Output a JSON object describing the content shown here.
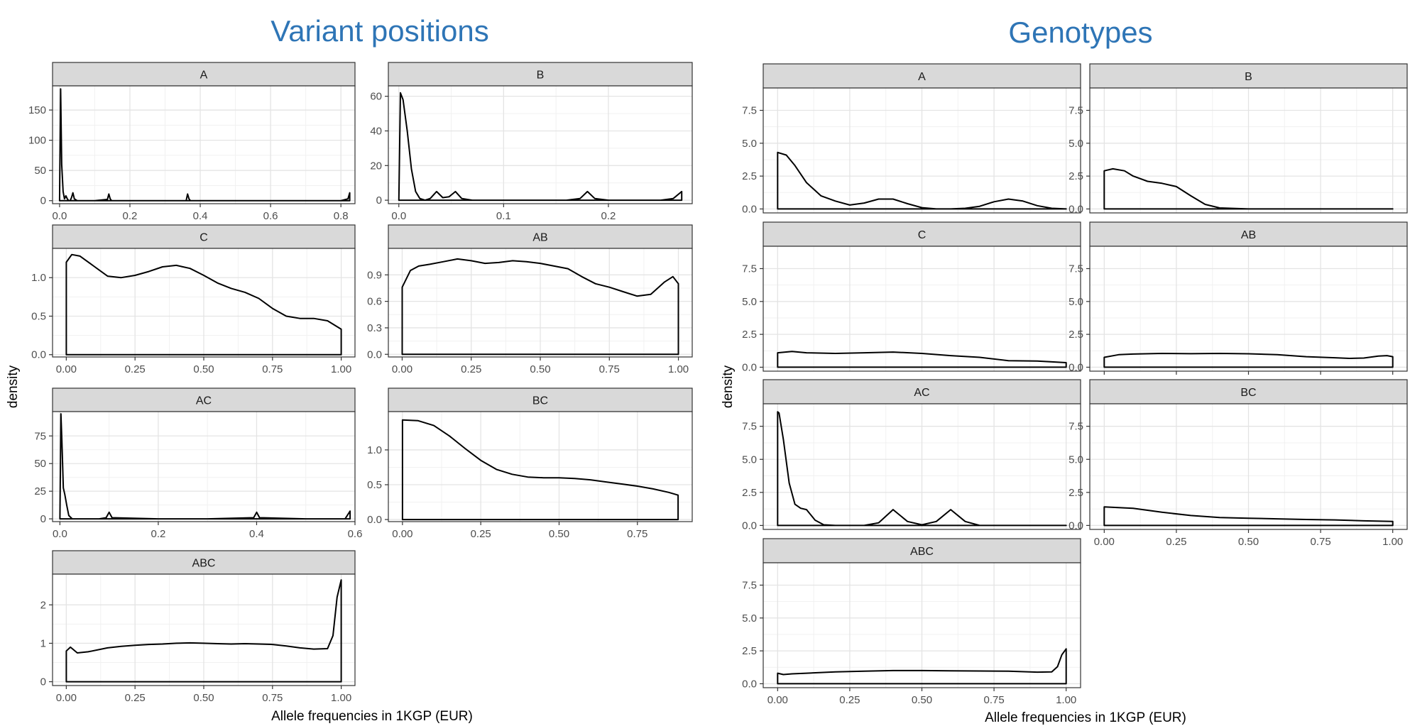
{
  "chart_data": [
    {
      "type": "area",
      "title": "Variant positions",
      "xlabel": "Allele frequencies in 1KGP (EUR)",
      "ylabel": "density",
      "grid": true,
      "facets": [
        {
          "label": "A",
          "xlim": [
            -0.02,
            0.84
          ],
          "ylim": [
            -5,
            190
          ],
          "xticks": [
            0,
            0.2,
            0.4,
            0.6,
            0.8
          ],
          "xtick_labels": [
            "0.0",
            "0.2",
            "0.4",
            "0.6",
            "0.8"
          ],
          "yticks": [
            0,
            50,
            100,
            150
          ],
          "ytick_labels": [
            "0",
            "50",
            "100",
            "150"
          ],
          "x": [
            0,
            0.003,
            0.006,
            0.01,
            0.014,
            0.018,
            0.022,
            0.026,
            0.03,
            0.034,
            0.038,
            0.042,
            0.05,
            0.1,
            0.136,
            0.14,
            0.144,
            0.148,
            0.2,
            0.3,
            0.36,
            0.364,
            0.368,
            0.372,
            0.5,
            0.6,
            0.7,
            0.8,
            0.82,
            0.825
          ],
          "y": [
            0,
            185,
            60,
            15,
            3,
            8,
            3,
            0,
            0,
            5,
            13,
            3,
            0,
            0,
            2,
            11,
            3,
            0,
            0,
            0,
            0,
            11,
            3,
            0,
            0,
            0,
            0,
            0,
            3,
            13
          ]
        },
        {
          "label": "B",
          "xlim": [
            -0.01,
            0.28
          ],
          "ylim": [
            -2,
            66
          ],
          "xticks": [
            0,
            0.1,
            0.2
          ],
          "xtick_labels": [
            "0.0",
            "0.1",
            "0.2"
          ],
          "yticks": [
            0,
            20,
            40,
            60
          ],
          "ytick_labels": [
            "0",
            "20",
            "40",
            "60"
          ],
          "x": [
            0,
            0.0015,
            0.004,
            0.008,
            0.012,
            0.016,
            0.02,
            0.025,
            0.03,
            0.036,
            0.042,
            0.048,
            0.054,
            0.06,
            0.07,
            0.1,
            0.16,
            0.173,
            0.18,
            0.187,
            0.2,
            0.25,
            0.262,
            0.27
          ],
          "y": [
            0,
            62,
            58,
            40,
            18,
            5,
            1,
            0,
            1,
            5,
            1.5,
            2,
            5,
            1,
            0,
            0,
            0,
            1,
            5,
            1,
            0,
            0,
            1,
            5
          ]
        },
        {
          "label": "C",
          "xlim": [
            -0.05,
            1.05
          ],
          "ylim": [
            -0.03,
            1.38
          ],
          "xticks": [
            0,
            0.25,
            0.5,
            0.75,
            1
          ],
          "xtick_labels": [
            "0.00",
            "0.25",
            "0.50",
            "0.75",
            "1.00"
          ],
          "yticks": [
            0,
            0.5,
            1.0
          ],
          "ytick_labels": [
            "0.0",
            "0.5",
            "1.0"
          ],
          "x": [
            0,
            0.02,
            0.05,
            0.1,
            0.15,
            0.2,
            0.25,
            0.3,
            0.35,
            0.4,
            0.45,
            0.5,
            0.55,
            0.6,
            0.65,
            0.7,
            0.75,
            0.8,
            0.85,
            0.9,
            0.95,
            1
          ],
          "y": [
            1.2,
            1.3,
            1.28,
            1.15,
            1.02,
            1.0,
            1.03,
            1.08,
            1.14,
            1.16,
            1.12,
            1.03,
            0.93,
            0.86,
            0.81,
            0.73,
            0.6,
            0.5,
            0.47,
            0.47,
            0.44,
            0.33
          ]
        },
        {
          "label": "AB",
          "xlim": [
            -0.05,
            1.05
          ],
          "ylim": [
            -0.03,
            1.2
          ],
          "xticks": [
            0,
            0.25,
            0.5,
            0.75,
            1
          ],
          "xtick_labels": [
            "0.00",
            "0.25",
            "0.50",
            "0.75",
            "1.00"
          ],
          "yticks": [
            0,
            0.3,
            0.6,
            0.9
          ],
          "ytick_labels": [
            "0.0",
            "0.3",
            "0.6",
            "0.9"
          ],
          "x": [
            0,
            0.03,
            0.06,
            0.1,
            0.15,
            0.2,
            0.25,
            0.3,
            0.35,
            0.4,
            0.45,
            0.5,
            0.55,
            0.6,
            0.65,
            0.7,
            0.75,
            0.8,
            0.85,
            0.9,
            0.95,
            0.98,
            1
          ],
          "y": [
            0.76,
            0.95,
            1.0,
            1.02,
            1.05,
            1.08,
            1.06,
            1.03,
            1.04,
            1.06,
            1.05,
            1.03,
            1.0,
            0.97,
            0.88,
            0.8,
            0.76,
            0.71,
            0.66,
            0.68,
            0.82,
            0.88,
            0.8
          ]
        },
        {
          "label": "AC",
          "xlim": [
            -0.015,
            0.6
          ],
          "ylim": [
            -2.5,
            97
          ],
          "xticks": [
            0,
            0.2,
            0.4,
            0.6
          ],
          "xtick_labels": [
            "0.0",
            "0.2",
            "0.4",
            "0.6"
          ],
          "yticks": [
            0,
            25,
            50,
            75
          ],
          "ytick_labels": [
            "0",
            "25",
            "50",
            "75"
          ],
          "x": [
            0,
            0.002,
            0.004,
            0.007,
            0.01,
            0.014,
            0.018,
            0.025,
            0.08,
            0.094,
            0.1,
            0.106,
            0.2,
            0.3,
            0.394,
            0.4,
            0.406,
            0.5,
            0.58,
            0.59
          ],
          "y": [
            0,
            95,
            70,
            28,
            22,
            12,
            3,
            0,
            0,
            1,
            6,
            1,
            0,
            0,
            1,
            6,
            1,
            0,
            0,
            7
          ]
        },
        {
          "label": "BC",
          "xlim": [
            -0.045,
            0.925
          ],
          "ylim": [
            -0.03,
            1.55
          ],
          "xticks": [
            0,
            0.25,
            0.5,
            0.75
          ],
          "xtick_labels": [
            "0.00",
            "0.25",
            "0.50",
            "0.75"
          ],
          "yticks": [
            0,
            0.5,
            1.0
          ],
          "ytick_labels": [
            "0.0",
            "0.5",
            "1.0"
          ],
          "x": [
            0,
            0.05,
            0.1,
            0.15,
            0.2,
            0.25,
            0.3,
            0.35,
            0.4,
            0.45,
            0.5,
            0.55,
            0.6,
            0.65,
            0.7,
            0.75,
            0.8,
            0.85,
            0.88
          ],
          "y": [
            1.43,
            1.42,
            1.35,
            1.2,
            1.02,
            0.85,
            0.72,
            0.65,
            0.61,
            0.6,
            0.6,
            0.59,
            0.57,
            0.54,
            0.51,
            0.48,
            0.44,
            0.39,
            0.35
          ]
        },
        {
          "label": "ABC",
          "xlim": [
            -0.05,
            1.05
          ],
          "ylim": [
            -0.1,
            2.8
          ],
          "xticks": [
            0,
            0.25,
            0.5,
            0.75,
            1
          ],
          "xtick_labels": [
            "0.00",
            "0.25",
            "0.50",
            "0.75",
            "1.00"
          ],
          "yticks": [
            0,
            1,
            2
          ],
          "ytick_labels": [
            "0",
            "1",
            "2"
          ],
          "x": [
            0,
            0.015,
            0.04,
            0.08,
            0.15,
            0.2,
            0.25,
            0.3,
            0.35,
            0.4,
            0.45,
            0.5,
            0.55,
            0.6,
            0.65,
            0.7,
            0.75,
            0.8,
            0.85,
            0.9,
            0.95,
            0.97,
            0.985,
            1
          ],
          "y": [
            0.8,
            0.9,
            0.75,
            0.78,
            0.88,
            0.92,
            0.95,
            0.97,
            0.98,
            1.0,
            1.01,
            1.0,
            0.99,
            0.98,
            0.99,
            0.98,
            0.97,
            0.93,
            0.88,
            0.85,
            0.86,
            1.2,
            2.2,
            2.65
          ]
        }
      ]
    },
    {
      "type": "area",
      "title": "Genotypes",
      "xlabel": "Allele frequencies in 1KGP (EUR)",
      "ylabel": "density",
      "grid": true,
      "facets": [
        {
          "label": "A",
          "xlim": [
            -0.05,
            1.05
          ],
          "ylim": [
            -0.3,
            9.2
          ],
          "xticks": [
            0,
            0.25,
            0.5,
            0.75,
            1
          ],
          "xtick_labels": [
            "0.00",
            "0.25",
            "0.50",
            "0.75",
            "1.00"
          ],
          "yticks": [
            0,
            2.5,
            5,
            7.5
          ],
          "ytick_labels": [
            "0.0",
            "2.5",
            "5.0",
            "7.5"
          ],
          "x": [
            0,
            0.03,
            0.06,
            0.1,
            0.15,
            0.2,
            0.25,
            0.3,
            0.35,
            0.4,
            0.45,
            0.5,
            0.55,
            0.6,
            0.65,
            0.7,
            0.75,
            0.8,
            0.85,
            0.9,
            0.95,
            1
          ],
          "y": [
            4.3,
            4.1,
            3.3,
            2.0,
            1.0,
            0.6,
            0.3,
            0.45,
            0.75,
            0.75,
            0.4,
            0.1,
            0.0,
            0.0,
            0.05,
            0.2,
            0.55,
            0.75,
            0.6,
            0.25,
            0.05,
            0.0
          ]
        },
        {
          "label": "B",
          "xlim": [
            -0.05,
            1.05
          ],
          "ylim": [
            -0.3,
            9.2
          ],
          "xticks": [
            0,
            0.25,
            0.5,
            0.75,
            1
          ],
          "xtick_labels": [
            "0.00",
            "0.25",
            "0.50",
            "0.75",
            "1.00"
          ],
          "yticks": [
            0,
            2.5,
            5,
            7.5
          ],
          "ytick_labels": [
            "0.0",
            "2.5",
            "5.0",
            "7.5"
          ],
          "x": [
            0,
            0.03,
            0.07,
            0.1,
            0.15,
            0.2,
            0.25,
            0.3,
            0.35,
            0.4,
            0.5,
            0.6,
            0.7,
            0.8,
            0.9,
            1
          ],
          "y": [
            2.9,
            3.05,
            2.9,
            2.5,
            2.1,
            1.95,
            1.7,
            1.0,
            0.35,
            0.08,
            0.0,
            0.0,
            0.0,
            0.0,
            0.0,
            0.0
          ]
        },
        {
          "label": "C",
          "xlim": [
            -0.05,
            1.05
          ],
          "ylim": [
            -0.3,
            9.2
          ],
          "xticks": [
            0,
            0.25,
            0.5,
            0.75,
            1
          ],
          "xtick_labels": [
            "0.00",
            "0.25",
            "0.50",
            "0.75",
            "1.00"
          ],
          "yticks": [
            0,
            2.5,
            5,
            7.5
          ],
          "ytick_labels": [
            "0.0",
            "2.5",
            "5.0",
            "7.5"
          ],
          "x": [
            0,
            0.05,
            0.1,
            0.2,
            0.3,
            0.4,
            0.5,
            0.6,
            0.7,
            0.8,
            0.9,
            1
          ],
          "y": [
            1.1,
            1.2,
            1.1,
            1.05,
            1.1,
            1.15,
            1.05,
            0.88,
            0.75,
            0.5,
            0.47,
            0.35
          ]
        },
        {
          "label": "AB",
          "xlim": [
            -0.05,
            1.05
          ],
          "ylim": [
            -0.3,
            9.2
          ],
          "xticks": [
            0,
            0.25,
            0.5,
            0.75,
            1
          ],
          "xtick_labels": [
            "0.00",
            "0.25",
            "0.50",
            "0.75",
            "1.00"
          ],
          "yticks": [
            0,
            2.5,
            5,
            7.5
          ],
          "ytick_labels": [
            "0.0",
            "2.5",
            "5.0",
            "7.5"
          ],
          "x": [
            0,
            0.05,
            0.1,
            0.2,
            0.3,
            0.4,
            0.5,
            0.6,
            0.7,
            0.8,
            0.85,
            0.9,
            0.95,
            0.98,
            1
          ],
          "y": [
            0.75,
            0.95,
            1.0,
            1.05,
            1.03,
            1.05,
            1.02,
            0.95,
            0.8,
            0.72,
            0.67,
            0.7,
            0.85,
            0.88,
            0.8
          ]
        },
        {
          "label": "AC",
          "xlim": [
            -0.05,
            1.05
          ],
          "ylim": [
            -0.3,
            9.2
          ],
          "xticks": [
            0,
            0.25,
            0.5,
            0.75,
            1
          ],
          "xtick_labels": [
            "0.00",
            "0.25",
            "0.50",
            "0.75",
            "1.00"
          ],
          "yticks": [
            0,
            2.5,
            5,
            7.5
          ],
          "ytick_labels": [
            "0.0",
            "2.5",
            "5.0",
            "7.5"
          ],
          "x": [
            0,
            0.005,
            0.02,
            0.04,
            0.06,
            0.08,
            0.1,
            0.13,
            0.16,
            0.2,
            0.3,
            0.35,
            0.4,
            0.45,
            0.5,
            0.55,
            0.6,
            0.65,
            0.7,
            0.8,
            0.9,
            1
          ],
          "y": [
            8.6,
            8.5,
            6.5,
            3.2,
            1.6,
            1.3,
            1.2,
            0.4,
            0.05,
            0.0,
            0.0,
            0.2,
            1.2,
            0.3,
            0.05,
            0.3,
            1.2,
            0.3,
            0.0,
            0.0,
            0.0,
            0.0
          ]
        },
        {
          "label": "BC",
          "xlim": [
            -0.05,
            1.05
          ],
          "ylim": [
            -0.3,
            9.2
          ],
          "xticks": [
            0,
            0.25,
            0.5,
            0.75,
            1
          ],
          "xtick_labels": [
            "0.00",
            "0.25",
            "0.50",
            "0.75",
            "1.00"
          ],
          "yticks": [
            0,
            2.5,
            5,
            7.5
          ],
          "ytick_labels": [
            "0.0",
            "2.5",
            "5.0",
            "7.5"
          ],
          "x": [
            0,
            0.1,
            0.2,
            0.3,
            0.4,
            0.5,
            0.6,
            0.7,
            0.8,
            0.9,
            1
          ],
          "y": [
            1.4,
            1.3,
            1.0,
            0.75,
            0.6,
            0.55,
            0.5,
            0.45,
            0.42,
            0.35,
            0.3
          ]
        },
        {
          "label": "ABC",
          "xlim": [
            -0.05,
            1.05
          ],
          "ylim": [
            -0.3,
            9.2
          ],
          "xticks": [
            0,
            0.25,
            0.5,
            0.75,
            1
          ],
          "xtick_labels": [
            "0.00",
            "0.25",
            "0.50",
            "0.75",
            "1.00"
          ],
          "yticks": [
            0,
            2.5,
            5,
            7.5
          ],
          "ytick_labels": [
            "0.0",
            "2.5",
            "5.0",
            "7.5"
          ],
          "x": [
            0,
            0.02,
            0.05,
            0.1,
            0.2,
            0.3,
            0.4,
            0.5,
            0.6,
            0.7,
            0.8,
            0.9,
            0.95,
            0.97,
            0.985,
            1
          ],
          "y": [
            0.8,
            0.7,
            0.75,
            0.8,
            0.9,
            0.95,
            1.0,
            1.0,
            0.98,
            0.97,
            0.95,
            0.88,
            0.9,
            1.3,
            2.2,
            2.65
          ]
        }
      ]
    }
  ]
}
